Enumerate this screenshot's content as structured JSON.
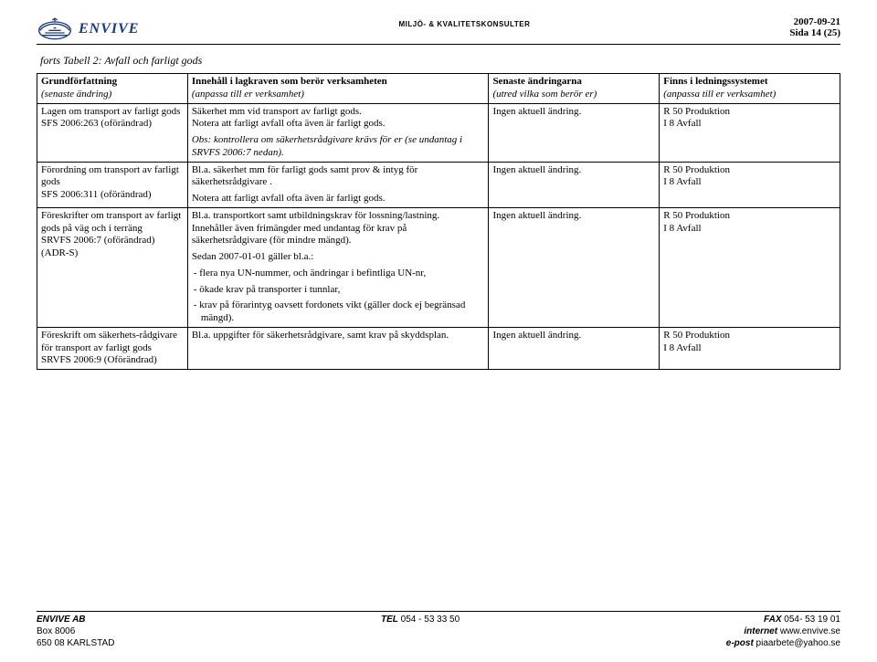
{
  "header": {
    "brand": "ENVIVE",
    "center": "MILJÖ- & KVALITETSKONSULTER",
    "date": "2007-09-21",
    "page_label": "Sida 14 (25)"
  },
  "caption": "forts Tabell 2: Avfall och farligt gods",
  "columns": {
    "c1_title": "Grundförfattning",
    "c1_sub": "(senaste ändring)",
    "c2_title": "Innehåll i lagkraven som berör verksamheten",
    "c2_sub": "(anpassa till er verksamhet)",
    "c3_title": "Senaste ändringarna",
    "c3_sub": "(utred vilka som berör er)",
    "c4_title": "Finns i ledningssystemet",
    "c4_sub": "(anpassa till er verksamhet)"
  },
  "rows": [
    {
      "c1": "Lagen om transport av farligt gods\nSFS 2006:263 (oförändrad)",
      "c2_p1": "Säkerhet mm vid transport av farligt gods.\nNotera att farligt avfall ofta även är farligt gods.",
      "c2_p2_italic": "Obs: kontrollera om säkerhetsrådgivare krävs för er (se undantag i SRVFS 2006:7 nedan).",
      "c3": "Ingen aktuell ändring.",
      "c4": "R 50 Produktion\nI 8 Avfall"
    },
    {
      "c1": "Förordning om transport av farligt gods\nSFS 2006:311 (oförändrad)",
      "c2_p1": "Bl.a. säkerhet mm för farligt gods samt prov & intyg för säkerhetsrådgivare .",
      "c2_p2": "Notera att farligt avfall ofta även är farligt gods.",
      "c3": "Ingen aktuell ändring.",
      "c4": "R 50 Produktion\nI 8 Avfall"
    },
    {
      "c1": "Föreskrifter om transport av farligt gods på väg och i terräng\nSRVFS 2006:7 (oförändrad) (ADR-S)",
      "c2_p1": "Bl.a. transportkort samt utbildningskrav för lossning/lastning.\nInnehåller även frimängder med undantag för krav på säkerhetsrådgivare (för mindre mängd).",
      "c2_lead": "Sedan 2007-01-01 gäller bl.a.:",
      "c2_b1": "- flera nya UN-nummer, och ändringar i befintliga UN-nr,",
      "c2_b2": "- ökade krav på transporter i tunnlar,",
      "c2_b3": "- krav på förarintyg oavsett fordonets vikt (gäller dock ej begränsad mängd).",
      "c3": "Ingen aktuell ändring.",
      "c4": "R 50 Produktion\nI 8 Avfall"
    },
    {
      "c1": "Föreskrift om säkerhets-rådgivare för transport av farligt gods\nSRVFS 2006:9 (Oförändrad)",
      "c2_p1": "Bl.a. uppgifter för säkerhetsrådgivare, samt krav på skyddsplan.",
      "c3": "Ingen aktuell ändring.",
      "c4": "R 50 Produktion\nI 8 Avfall"
    }
  ],
  "footer": {
    "left1": "ENVIVE AB",
    "left2": "Box 8006",
    "left3": "650 08 KARLSTAD",
    "center_label": "TEL",
    "center_val": " 054 - 53 33 50",
    "right1_label": "FAX",
    "right1_val": " 054- 53 19 01",
    "right2_label": "internet",
    "right2_val": " www.envive.se",
    "right3_label": "e-post",
    "right3_val": " piaarbete@yahoo.se"
  },
  "colors": {
    "logo_stroke": "#1a3a7a",
    "brand_color": "#1a3a7a"
  }
}
